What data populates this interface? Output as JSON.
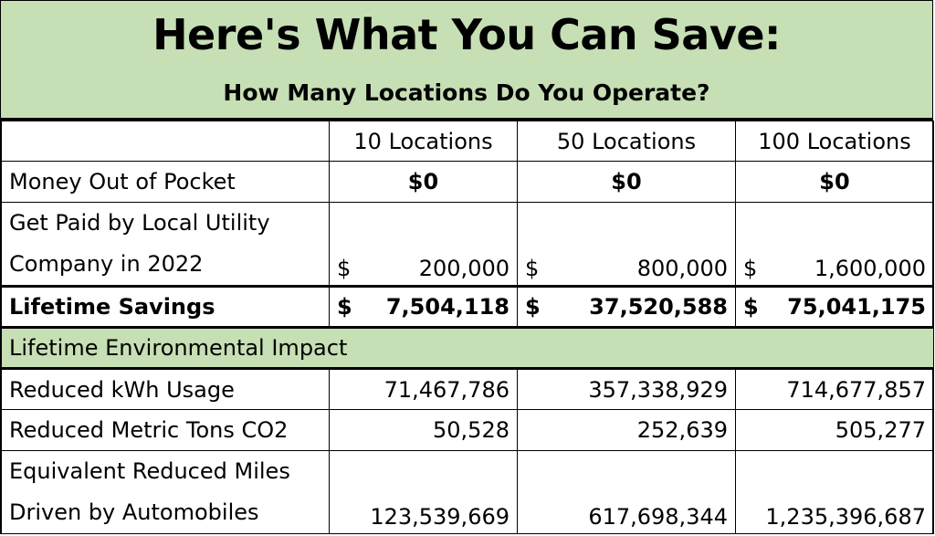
{
  "header": {
    "title": "Here's What You Can Save:",
    "subtitle": "How Many Locations Do You Operate?"
  },
  "columns": [
    "10 Locations",
    "50 Locations",
    "100 Locations"
  ],
  "rows": {
    "money_out": {
      "label": "Money Out of Pocket",
      "values": [
        "$0",
        "$0",
        "$0"
      ]
    },
    "utility": {
      "label_line1": "Get Paid by Local Utility",
      "label_line2": "Company in 2022",
      "currency": "$",
      "values": [
        "200,000",
        "800,000",
        "1,600,000"
      ]
    },
    "lifetime": {
      "label": "Lifetime Savings",
      "currency": "$",
      "values": [
        "7,504,118",
        "37,520,588",
        "75,041,175"
      ]
    }
  },
  "section": {
    "label": "Lifetime Environmental Impact"
  },
  "impact": {
    "kwh": {
      "label": "Reduced kWh Usage",
      "values": [
        "71,467,786",
        "357,338,929",
        "714,677,857"
      ]
    },
    "co2": {
      "label": "Reduced Metric Tons CO2",
      "values": [
        "50,528",
        "252,639",
        "505,277"
      ]
    },
    "miles": {
      "label_line1": "Equivalent Reduced Miles",
      "label_line2": "Driven by Automobiles",
      "values": [
        "123,539,669",
        "617,698,344",
        "1,235,396,687"
      ]
    }
  },
  "colors": {
    "header_green": "#c6dfb4",
    "border": "#000000"
  }
}
